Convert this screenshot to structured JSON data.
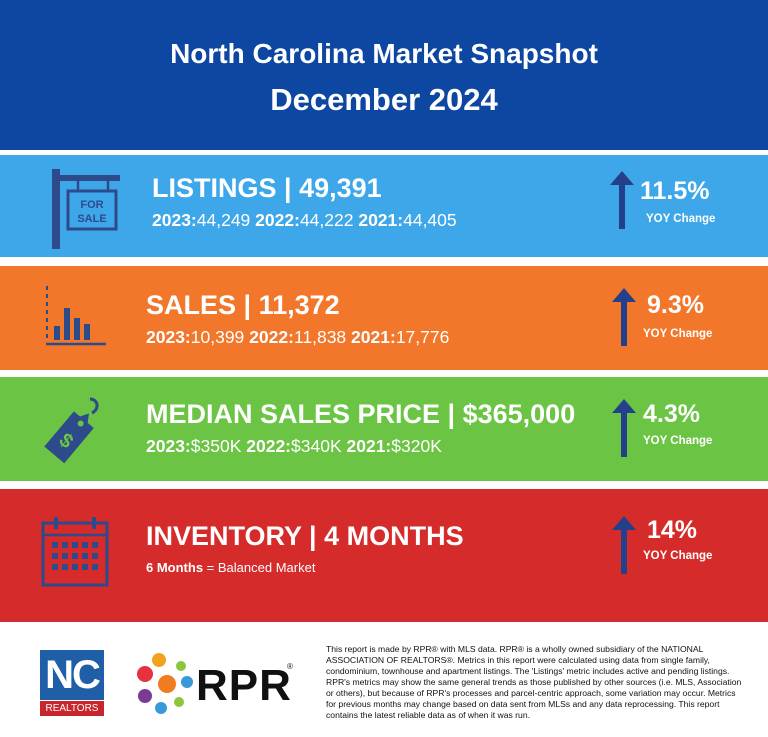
{
  "header": {
    "title": "North Carolina Market Snapshot",
    "period": "December 2024"
  },
  "metrics": {
    "listings": {
      "title": "LISTINGS | 49,391",
      "y2023_label": "2023:",
      "y2023_value": "44,249",
      "y2022_label": "2022:",
      "y2022_value": "44,222",
      "y2021_label": "2021:",
      "y2021_value": "44,405",
      "change": "11.5%",
      "change_label": "YOY Change",
      "direction": "up",
      "icon": "for-sale-sign-icon",
      "icon_text": "FOR SALE",
      "color": "#3ea7ea"
    },
    "sales": {
      "title": "SALES | 11,372",
      "y2023_label": "2023:",
      "y2023_value": "10,399",
      "y2022_label": "2022:",
      "y2022_value": "11,838",
      "y2021_label": "2021:",
      "y2021_value": "17,776",
      "change": "9.3%",
      "change_label": "YOY Change",
      "direction": "up",
      "icon": "bar-chart-icon",
      "color": "#f2772a"
    },
    "median_price": {
      "title": "MEDIAN SALES PRICE | $365,000",
      "y2023_label": "2023:",
      "y2023_value": "$350K",
      "y2022_label": "2022:",
      "y2022_value": "$340K",
      "y2021_label": "2021:",
      "y2021_value": "$320K",
      "change": "4.3%",
      "change_label": "YOY Change",
      "direction": "up",
      "icon": "price-tag-icon",
      "color": "#6bc443"
    },
    "inventory": {
      "title": "INVENTORY | 4 MONTHS",
      "note_bold": "6 Months",
      "note_rest": " = Balanced Market",
      "change": "14%",
      "change_label": "YOY Change",
      "direction": "up",
      "icon": "calendar-icon",
      "color": "#d52b2b"
    }
  },
  "footer": {
    "nc_logo_top": "NC",
    "nc_logo_bottom": "REALTORS",
    "rpr_logo": "RPR",
    "rpr_reg": "®",
    "disclaimer": "This report is made by RPR® with MLS data. RPR® is a wholly owned subsidiary of the NATIONAL ASSOCIATION OF REALTORS®. Metrics in this report were calculated using data from single family, condominium, townhouse and apartment listings. The 'Listings' metric includes active and pending listings. RPR's metrics may show the same general trends as those published by other sources (i.e. MLS, Association or others), but because of RPR's processes and parcel-centric approach, some variation may occur. Metrics for previous months may change based on data sent from MLSs and any data reprocessing. This report contains the latest reliable data as of when it was run."
  },
  "colors": {
    "header_bg": "#0d47a1",
    "icon_navy": "#2d4a8a",
    "arrow_navy": "#24408a"
  }
}
